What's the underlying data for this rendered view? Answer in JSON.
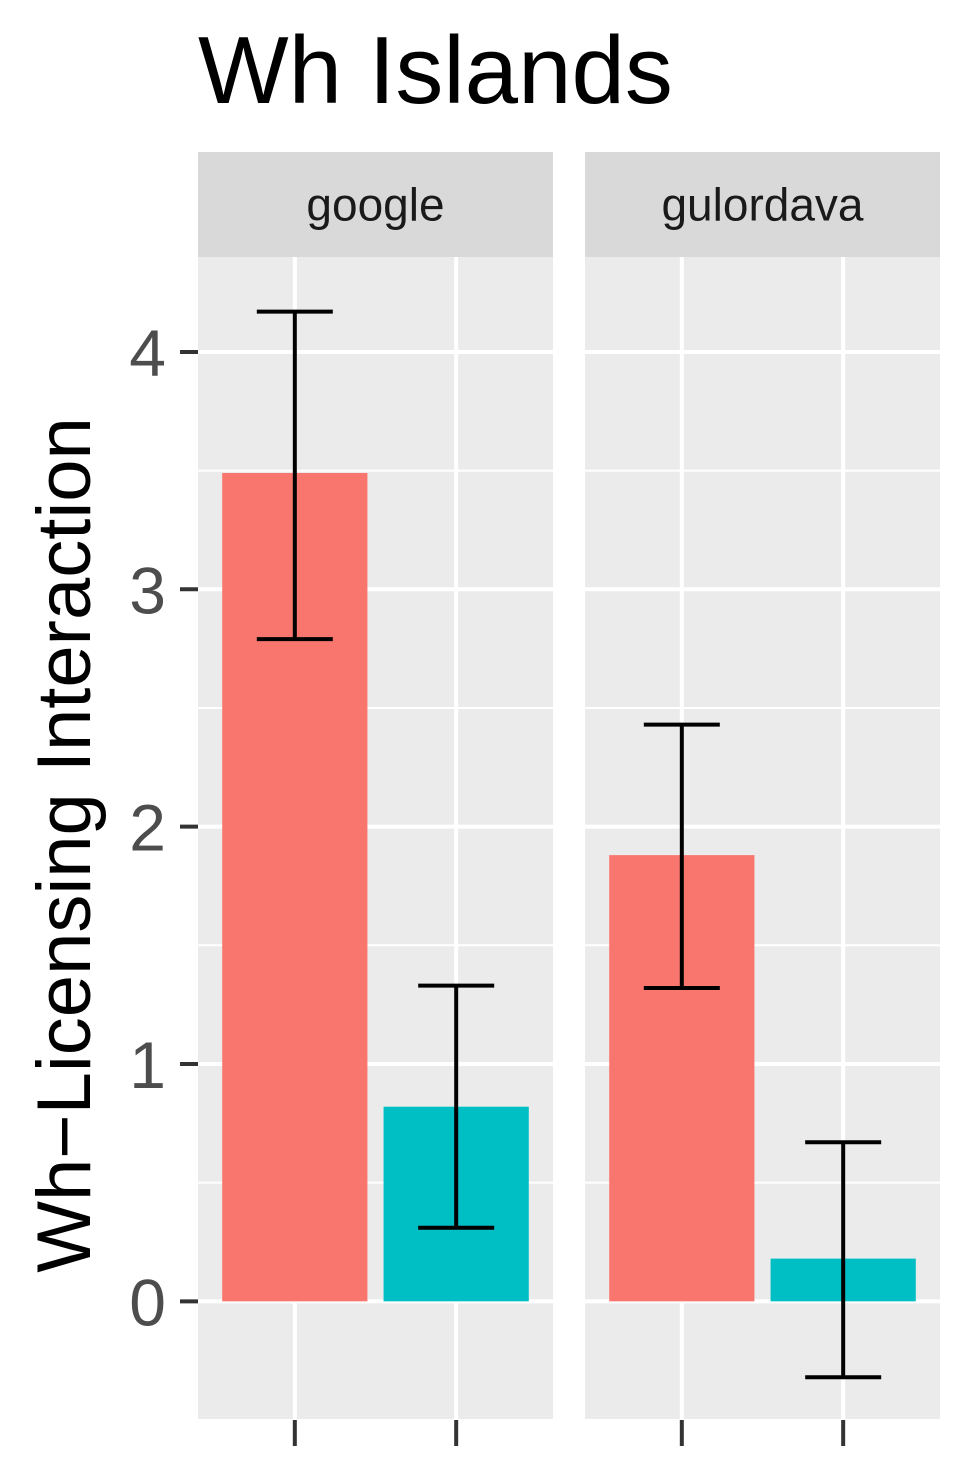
{
  "chart_data": {
    "type": "bar",
    "title": "Wh Islands",
    "ylabel": "Wh−Licensing Interaction",
    "xlabel": "",
    "ylim": [
      -0.5,
      4.4
    ],
    "yticks": [
      0,
      1,
      2,
      3,
      4
    ],
    "grid": true,
    "legend": "none",
    "colors": [
      "#F8766D",
      "#00BFC4"
    ],
    "panels": [
      {
        "name": "google",
        "bars": [
          {
            "value": 3.49,
            "err_low": 2.79,
            "err_high": 4.17
          },
          {
            "value": 0.82,
            "err_low": 0.31,
            "err_high": 1.33
          }
        ]
      },
      {
        "name": "gulordava",
        "bars": [
          {
            "value": 1.88,
            "err_low": 1.32,
            "err_high": 2.43
          },
          {
            "value": 0.18,
            "err_low": -0.32,
            "err_high": 0.67
          }
        ]
      }
    ]
  }
}
